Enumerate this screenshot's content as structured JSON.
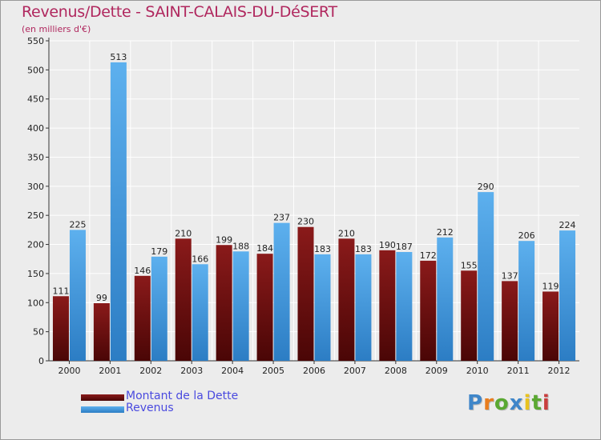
{
  "title": "Revenus/Dette - SAINT-CALAIS-DU-DéSERT",
  "subtitle": "(en milliers d'€)",
  "colors": {
    "dette": "#7a1414",
    "revenus": "#4fa4e6",
    "title": "#b0275e",
    "legend_text": "#4a4adf"
  },
  "chart_data": {
    "type": "bar",
    "title": "Revenus/Dette - SAINT-CALAIS-DU-DéSERT",
    "ylabel": "(en milliers d'€)",
    "xlabel": "",
    "ylim": [
      0,
      550
    ],
    "yticks": [
      0,
      50,
      100,
      150,
      200,
      250,
      300,
      350,
      400,
      450,
      500,
      550
    ],
    "grid": true,
    "legend": "bottom-left",
    "categories": [
      "2000",
      "2001",
      "2002",
      "2003",
      "2004",
      "2005",
      "2006",
      "2007",
      "2008",
      "2009",
      "2010",
      "2011",
      "2012"
    ],
    "series": [
      {
        "name": "Montant de la Dette",
        "values": [
          111,
          99,
          146,
          210,
          199,
          184,
          230,
          210,
          190,
          172,
          155,
          137,
          119
        ],
        "labels": [
          "111",
          "99",
          "146",
          "210",
          "199",
          "184",
          "230",
          "210",
          "190",
          "172",
          "155",
          "137",
          "119"
        ]
      },
      {
        "name": "Revenus",
        "values": [
          225,
          513,
          179,
          166,
          188,
          237,
          183,
          183,
          187,
          212,
          290,
          206,
          224
        ],
        "labels": [
          "225",
          "513",
          "179",
          "166",
          "188",
          "237",
          "183",
          "183",
          "187",
          "212",
          "290",
          "206",
          "224"
        ]
      }
    ]
  },
  "legend": {
    "items": [
      {
        "label": "Montant de la Dette"
      },
      {
        "label": "Revenus"
      }
    ]
  },
  "logo": {
    "letters": [
      "P",
      "r",
      "o",
      "x",
      "i",
      "t",
      "i"
    ],
    "colors": [
      "#3f86c9",
      "#e87d1e",
      "#5aa832",
      "#3f86c9",
      "#e8c21e",
      "#5aa832",
      "#c93f3f"
    ]
  }
}
